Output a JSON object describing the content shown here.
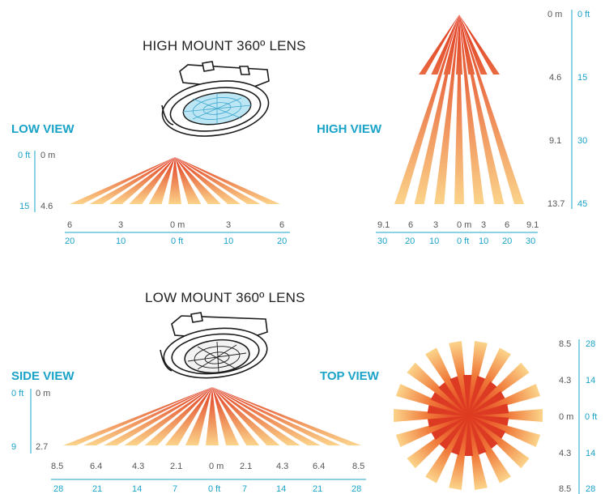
{
  "high_mount": {
    "title": "HIGH MOUNT 360º LENS",
    "low_view": {
      "heading": "LOW VIEW",
      "vert_m": [
        "0 m",
        "4.6"
      ],
      "vert_ft": [
        "0 ft",
        "15"
      ],
      "horiz_m": [
        "6",
        "3",
        "0 m",
        "3",
        "6"
      ],
      "horiz_ft": [
        "20",
        "10",
        "0 ft",
        "10",
        "20"
      ]
    },
    "high_view": {
      "heading": "HIGH VIEW",
      "vert_m": [
        "0 m",
        "4.6",
        "9.1",
        "13.7"
      ],
      "vert_ft": [
        "0 ft",
        "15",
        "30",
        "45"
      ],
      "horiz_m": [
        "9.1",
        "6",
        "3",
        "0 m",
        "3",
        "6",
        "9.1"
      ],
      "horiz_ft": [
        "30",
        "20",
        "10",
        "0 ft",
        "10",
        "20",
        "30"
      ]
    }
  },
  "low_mount": {
    "title": "LOW MOUNT 360º LENS",
    "side_view": {
      "heading": "SIDE VIEW",
      "vert_ft": [
        "0 ft",
        "9"
      ],
      "vert_m": [
        "0 m",
        "2.7"
      ],
      "horiz_m": [
        "8.5",
        "6.4",
        "4.3",
        "2.1",
        "0 m",
        "2.1",
        "4.3",
        "6.4",
        "8.5"
      ],
      "horiz_ft": [
        "28",
        "21",
        "14",
        "7",
        "0 ft",
        "7",
        "14",
        "21",
        "28"
      ]
    },
    "top_view": {
      "heading": "TOP VIEW",
      "vert_m": [
        "8.5",
        "4.3",
        "0 m",
        "4.3",
        "8.5"
      ],
      "vert_ft": [
        "28",
        "14",
        "0 ft",
        "14",
        "28"
      ]
    }
  },
  "colors": {
    "accent": "#1aa3c8",
    "beam_dark": "#e0381e",
    "beam_light": "#fbd38a"
  },
  "icons": [
    "high-mount-sensor-icon",
    "low-mount-sensor-icon"
  ]
}
